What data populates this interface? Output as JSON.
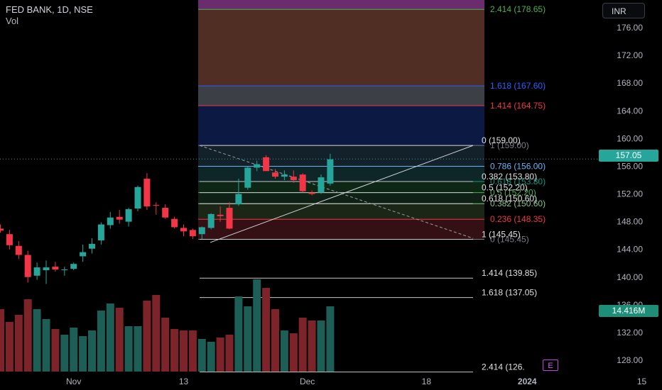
{
  "header": {
    "title": "FED BANK, 1D, NSE",
    "subtitle": "Vol"
  },
  "currency_button": "INR",
  "last_price_tag": "157.05",
  "volume_tag": "14.416M",
  "earnings_badge": "E",
  "colors": {
    "up": "#26a69a",
    "down": "#f23645",
    "up_vol": "#1d5e57",
    "down_vol": "#7c2429",
    "axis_text": "#b2b5be",
    "trend_line": "#d1d4dc"
  },
  "fib_left": [
    {
      "label": "2.414 (178.65)",
      "price": 178.65,
      "color": "#4caf50",
      "fill": "#6a2c6c"
    },
    {
      "label": "1.618 (167.60)",
      "price": 167.6,
      "color": "#2962ff",
      "fill": "#5a3328"
    },
    {
      "label": "1.414 (164.75)",
      "price": 164.75,
      "color": "#f23645",
      "fill": "#44464e"
    },
    {
      "label": "1 (159.00)",
      "price": 159.0,
      "color": "#787b86",
      "fill": "#0c1c4a"
    },
    {
      "label": "0.786 (156.00)",
      "price": 156.0,
      "color": "#64b5f6",
      "fill": "#152530"
    },
    {
      "label": "0.618 (153.80)",
      "price": 153.8,
      "color": "#089981",
      "fill": "#0f2a2c"
    },
    {
      "label": "0.5 (152.20)",
      "price": 152.2,
      "color": "#4caf50",
      "fill": "#0e2a18"
    },
    {
      "label": "0.382 (150.60)",
      "price": 150.6,
      "color": "#81c784",
      "fill": "#112418"
    },
    {
      "label": "0.236 (148.35)",
      "price": 148.35,
      "color": "#f23645",
      "fill": "#1f2a1a"
    },
    {
      "label": "0 (145.45)",
      "price": 145.45,
      "color": "#787b86",
      "fill": "#3a1216"
    }
  ],
  "fib_right": [
    {
      "label": "0 (159.00)",
      "price": 159.0
    },
    {
      "label": "0.382 (153.80)",
      "price": 153.8
    },
    {
      "label": "0.5 (152.20)",
      "price": 152.2
    },
    {
      "label": "0.618 (150.60)",
      "price": 150.6
    },
    {
      "label": "1 (145.45)",
      "price": 145.45
    },
    {
      "label": "1.414 (139.85)",
      "price": 139.85
    },
    {
      "label": "1.618 (137.05)",
      "price": 137.05
    },
    {
      "label": "2.414 (126.",
      "price": 126.3
    }
  ],
  "chart_data": {
    "type": "candlestick",
    "title": "FED BANK, 1D, NSE",
    "y_ticks": [
      "176.00",
      "172.00",
      "168.00",
      "164.00",
      "160.00",
      "156.00",
      "152.00",
      "148.00",
      "144.00",
      "140.00",
      "136.00",
      "132.00",
      "128.00"
    ],
    "y_tick_values": [
      176,
      172,
      168,
      164,
      160,
      156,
      152,
      148,
      144,
      140,
      136,
      132,
      128
    ],
    "x_ticks": [
      "Nov",
      "13",
      "Dec",
      "18",
      "2024",
      "15"
    ],
    "x_tick_index": [
      8,
      20,
      33.5,
      46.5,
      57.5,
      70
    ],
    "ylim": [
      123.7,
      180.0
    ],
    "candles": [
      {
        "o": 147.0,
        "h": 147.6,
        "l": 146.4,
        "c": 146.7
      },
      {
        "o": 146.2,
        "h": 146.8,
        "l": 144.0,
        "c": 144.6
      },
      {
        "o": 144.5,
        "h": 145.2,
        "l": 142.6,
        "c": 143.2
      },
      {
        "o": 143.2,
        "h": 143.8,
        "l": 139.2,
        "c": 140.0
      },
      {
        "o": 140.2,
        "h": 142.1,
        "l": 139.6,
        "c": 141.4
      },
      {
        "o": 141.0,
        "h": 142.4,
        "l": 139.0,
        "c": 141.4
      },
      {
        "o": 141.5,
        "h": 142.2,
        "l": 140.8,
        "c": 141.1
      },
      {
        "o": 141.0,
        "h": 141.5,
        "l": 140.2,
        "c": 141.1
      },
      {
        "o": 141.2,
        "h": 142.1,
        "l": 141.0,
        "c": 141.9
      },
      {
        "o": 143.0,
        "h": 144.7,
        "l": 142.2,
        "c": 143.6
      },
      {
        "o": 144.1,
        "h": 145.6,
        "l": 143.4,
        "c": 144.8
      },
      {
        "o": 145.3,
        "h": 147.9,
        "l": 144.7,
        "c": 147.6
      },
      {
        "o": 147.5,
        "h": 149.4,
        "l": 147.0,
        "c": 148.6
      },
      {
        "o": 148.7,
        "h": 149.7,
        "l": 147.7,
        "c": 148.3
      },
      {
        "o": 148.0,
        "h": 150.0,
        "l": 147.3,
        "c": 149.8
      },
      {
        "o": 149.9,
        "h": 153.2,
        "l": 149.5,
        "c": 153.0
      },
      {
        "o": 154.2,
        "h": 155.0,
        "l": 149.7,
        "c": 150.2
      },
      {
        "o": 150.4,
        "h": 150.8,
        "l": 149.0,
        "c": 150.3
      },
      {
        "o": 150.0,
        "h": 150.5,
        "l": 148.4,
        "c": 148.6
      },
      {
        "o": 148.4,
        "h": 148.7,
        "l": 147.0,
        "c": 147.2
      },
      {
        "o": 147.1,
        "h": 147.6,
        "l": 145.9,
        "c": 146.6
      },
      {
        "o": 146.8,
        "h": 147.0,
        "l": 145.5,
        "c": 145.9
      },
      {
        "o": 146.2,
        "h": 147.3,
        "l": 145.5,
        "c": 147.2
      },
      {
        "o": 147.1,
        "h": 149.2,
        "l": 146.9,
        "c": 149.1
      },
      {
        "o": 149.0,
        "h": 150.2,
        "l": 148.0,
        "c": 148.8
      },
      {
        "o": 150.0,
        "h": 150.8,
        "l": 146.9,
        "c": 147.0
      },
      {
        "o": 150.5,
        "h": 154.2,
        "l": 150.3,
        "c": 152.0
      },
      {
        "o": 152.9,
        "h": 156.0,
        "l": 152.6,
        "c": 155.8
      },
      {
        "o": 155.8,
        "h": 156.8,
        "l": 155.3,
        "c": 156.3
      },
      {
        "o": 157.3,
        "h": 157.6,
        "l": 155.5,
        "c": 155.3
      },
      {
        "o": 155.1,
        "h": 155.6,
        "l": 154.2,
        "c": 154.5
      },
      {
        "o": 154.5,
        "h": 155.4,
        "l": 154.0,
        "c": 154.8
      },
      {
        "o": 154.5,
        "h": 155.4,
        "l": 153.6,
        "c": 154.0
      },
      {
        "o": 154.8,
        "h": 155.0,
        "l": 152.2,
        "c": 152.4
      },
      {
        "o": 152.2,
        "h": 152.5,
        "l": 151.8,
        "c": 152.0
      },
      {
        "o": 152.2,
        "h": 154.8,
        "l": 152.0,
        "c": 154.4
      },
      {
        "o": 153.5,
        "h": 157.8,
        "l": 153.2,
        "c": 157.0
      }
    ],
    "volumes": [
      44,
      35,
      40,
      51,
      44,
      37,
      30,
      26,
      31,
      25,
      29,
      43,
      48,
      45,
      32,
      32,
      50,
      54,
      38,
      30,
      29,
      29,
      23,
      21,
      24,
      26,
      53,
      46,
      65,
      59,
      44,
      29,
      27,
      38,
      36,
      36,
      46
    ],
    "volume_max": 65
  }
}
